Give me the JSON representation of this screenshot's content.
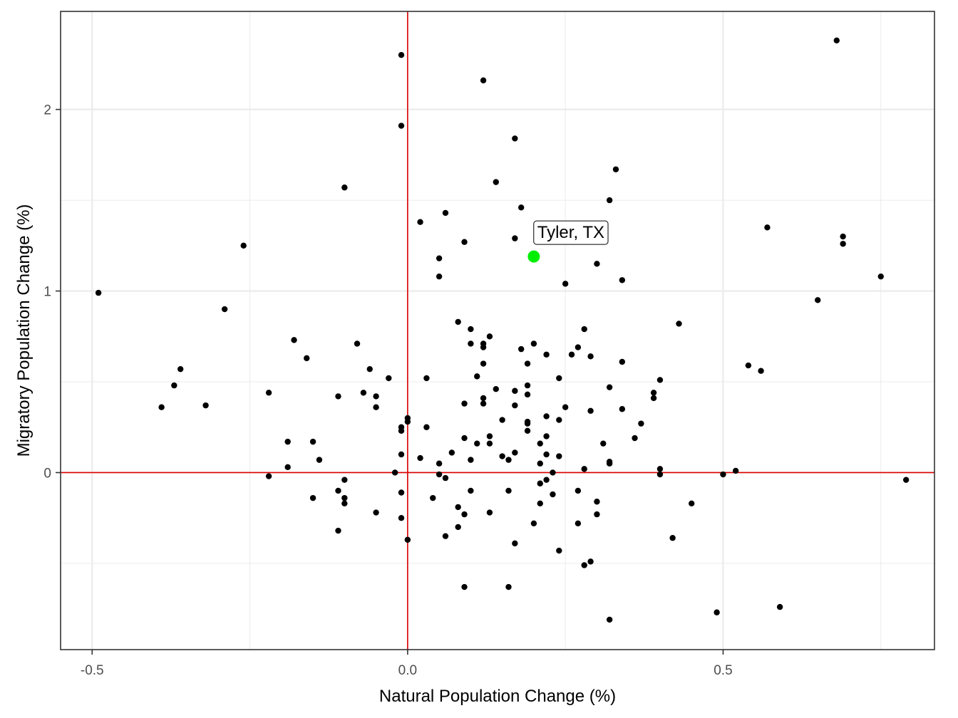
{
  "chart_data": {
    "type": "scatter",
    "xlabel": "Natural Population Change (%)",
    "ylabel": "Migratory Population Change (%)",
    "xlim": [
      -0.55,
      0.835
    ],
    "ylim": [
      -0.975,
      2.54
    ],
    "x_ticks": [
      -0.5,
      0.0,
      0.5
    ],
    "x_tick_labels": [
      "-0.5",
      "0.0",
      "0.5"
    ],
    "y_ticks": [
      0,
      1,
      2
    ],
    "y_tick_labels": [
      "0",
      "1",
      "2"
    ],
    "x_minor_ticks": [
      -0.25,
      0.25,
      0.75
    ],
    "y_minor_ticks": [
      -0.5,
      0.5,
      1.5
    ],
    "grid": true,
    "reference_lines": {
      "x": 0,
      "y": 0,
      "color": "#dd0000"
    },
    "point_color": "#000000",
    "highlight": {
      "label": "Tyler, TX",
      "x": 0.2,
      "y": 1.19,
      "color": "#00ee00"
    },
    "points": [
      [
        -0.49,
        0.99
      ],
      [
        -0.39,
        0.36
      ],
      [
        -0.37,
        0.48
      ],
      [
        -0.36,
        0.57
      ],
      [
        -0.32,
        0.37
      ],
      [
        -0.29,
        0.9
      ],
      [
        -0.26,
        1.25
      ],
      [
        -0.22,
        0.44
      ],
      [
        -0.22,
        -0.02
      ],
      [
        -0.19,
        0.17
      ],
      [
        -0.19,
        0.03
      ],
      [
        -0.18,
        0.73
      ],
      [
        -0.16,
        0.63
      ],
      [
        -0.15,
        0.17
      ],
      [
        -0.15,
        -0.14
      ],
      [
        -0.14,
        0.07
      ],
      [
        -0.11,
        0.42
      ],
      [
        -0.11,
        -0.1
      ],
      [
        -0.11,
        -0.32
      ],
      [
        -0.1,
        1.57
      ],
      [
        -0.1,
        -0.04
      ],
      [
        -0.1,
        -0.14
      ],
      [
        -0.1,
        -0.17
      ],
      [
        -0.08,
        0.71
      ],
      [
        -0.07,
        0.44
      ],
      [
        -0.06,
        0.57
      ],
      [
        -0.05,
        0.42
      ],
      [
        -0.05,
        0.36
      ],
      [
        -0.05,
        -0.22
      ],
      [
        -0.03,
        0.52
      ],
      [
        -0.02,
        0.0
      ],
      [
        -0.01,
        2.3
      ],
      [
        -0.01,
        1.91
      ],
      [
        -0.01,
        0.25
      ],
      [
        -0.01,
        0.23
      ],
      [
        -0.01,
        0.1
      ],
      [
        -0.01,
        -0.11
      ],
      [
        -0.01,
        -0.25
      ],
      [
        0.0,
        0.3
      ],
      [
        0.0,
        0.28
      ],
      [
        0.0,
        -0.37
      ],
      [
        0.02,
        1.38
      ],
      [
        0.02,
        0.08
      ],
      [
        0.03,
        0.52
      ],
      [
        0.03,
        0.25
      ],
      [
        0.04,
        -0.14
      ],
      [
        0.05,
        1.18
      ],
      [
        0.05,
        1.08
      ],
      [
        0.05,
        0.05
      ],
      [
        0.05,
        -0.01
      ],
      [
        0.06,
        1.43
      ],
      [
        0.06,
        -0.03
      ],
      [
        0.06,
        -0.35
      ],
      [
        0.07,
        0.11
      ],
      [
        0.08,
        0.83
      ],
      [
        0.08,
        -0.19
      ],
      [
        0.08,
        -0.3
      ],
      [
        0.09,
        1.27
      ],
      [
        0.09,
        0.38
      ],
      [
        0.09,
        0.19
      ],
      [
        0.09,
        -0.23
      ],
      [
        0.09,
        -0.63
      ],
      [
        0.1,
        0.79
      ],
      [
        0.1,
        0.71
      ],
      [
        0.1,
        0.07
      ],
      [
        0.1,
        -0.1
      ],
      [
        0.11,
        0.53
      ],
      [
        0.11,
        0.16
      ],
      [
        0.12,
        2.16
      ],
      [
        0.12,
        0.71
      ],
      [
        0.12,
        0.69
      ],
      [
        0.12,
        0.6
      ],
      [
        0.12,
        0.41
      ],
      [
        0.12,
        0.38
      ],
      [
        0.13,
        0.75
      ],
      [
        0.13,
        0.2
      ],
      [
        0.13,
        0.16
      ],
      [
        0.13,
        -0.22
      ],
      [
        0.14,
        1.6
      ],
      [
        0.14,
        0.46
      ],
      [
        0.15,
        0.29
      ],
      [
        0.15,
        0.09
      ],
      [
        0.16,
        0.07
      ],
      [
        0.16,
        -0.1
      ],
      [
        0.16,
        -0.63
      ],
      [
        0.17,
        1.84
      ],
      [
        0.17,
        1.29
      ],
      [
        0.17,
        0.45
      ],
      [
        0.17,
        0.37
      ],
      [
        0.17,
        0.11
      ],
      [
        0.17,
        -0.39
      ],
      [
        0.18,
        1.46
      ],
      [
        0.18,
        0.68
      ],
      [
        0.19,
        0.6
      ],
      [
        0.19,
        0.48
      ],
      [
        0.19,
        0.43
      ],
      [
        0.19,
        0.28
      ],
      [
        0.19,
        0.27
      ],
      [
        0.19,
        0.23
      ],
      [
        0.2,
        0.71
      ],
      [
        0.2,
        -0.28
      ],
      [
        0.21,
        0.16
      ],
      [
        0.21,
        0.05
      ],
      [
        0.21,
        -0.06
      ],
      [
        0.21,
        -0.17
      ],
      [
        0.22,
        0.65
      ],
      [
        0.22,
        0.31
      ],
      [
        0.22,
        0.2
      ],
      [
        0.22,
        0.1
      ],
      [
        0.22,
        -0.04
      ],
      [
        0.23,
        0.0
      ],
      [
        0.23,
        -0.12
      ],
      [
        0.24,
        0.52
      ],
      [
        0.24,
        0.29
      ],
      [
        0.24,
        0.09
      ],
      [
        0.24,
        -0.43
      ],
      [
        0.25,
        1.04
      ],
      [
        0.25,
        0.36
      ],
      [
        0.26,
        0.65
      ],
      [
        0.27,
        0.69
      ],
      [
        0.27,
        -0.1
      ],
      [
        0.27,
        -0.28
      ],
      [
        0.28,
        0.79
      ],
      [
        0.28,
        0.02
      ],
      [
        0.28,
        -0.51
      ],
      [
        0.29,
        0.64
      ],
      [
        0.29,
        0.34
      ],
      [
        0.29,
        -0.49
      ],
      [
        0.3,
        1.15
      ],
      [
        0.3,
        -0.16
      ],
      [
        0.3,
        -0.23
      ],
      [
        0.31,
        0.16
      ],
      [
        0.32,
        1.5
      ],
      [
        0.32,
        0.47
      ],
      [
        0.32,
        0.06
      ],
      [
        0.32,
        0.05
      ],
      [
        0.32,
        -0.81
      ],
      [
        0.33,
        1.67
      ],
      [
        0.34,
        1.06
      ],
      [
        0.34,
        0.61
      ],
      [
        0.34,
        0.35
      ],
      [
        0.36,
        0.19
      ],
      [
        0.37,
        0.27
      ],
      [
        0.39,
        0.44
      ],
      [
        0.39,
        0.41
      ],
      [
        0.4,
        0.51
      ],
      [
        0.4,
        0.02
      ],
      [
        0.4,
        -0.01
      ],
      [
        0.42,
        -0.36
      ],
      [
        0.43,
        0.82
      ],
      [
        0.45,
        -0.17
      ],
      [
        0.49,
        -0.77
      ],
      [
        0.5,
        -0.01
      ],
      [
        0.52,
        0.01
      ],
      [
        0.54,
        0.59
      ],
      [
        0.56,
        0.56
      ],
      [
        0.57,
        1.35
      ],
      [
        0.59,
        -0.74
      ],
      [
        0.65,
        0.95
      ],
      [
        0.68,
        2.38
      ],
      [
        0.69,
        1.3
      ],
      [
        0.69,
        1.26
      ],
      [
        0.75,
        1.08
      ],
      [
        0.79,
        -0.04
      ]
    ]
  }
}
